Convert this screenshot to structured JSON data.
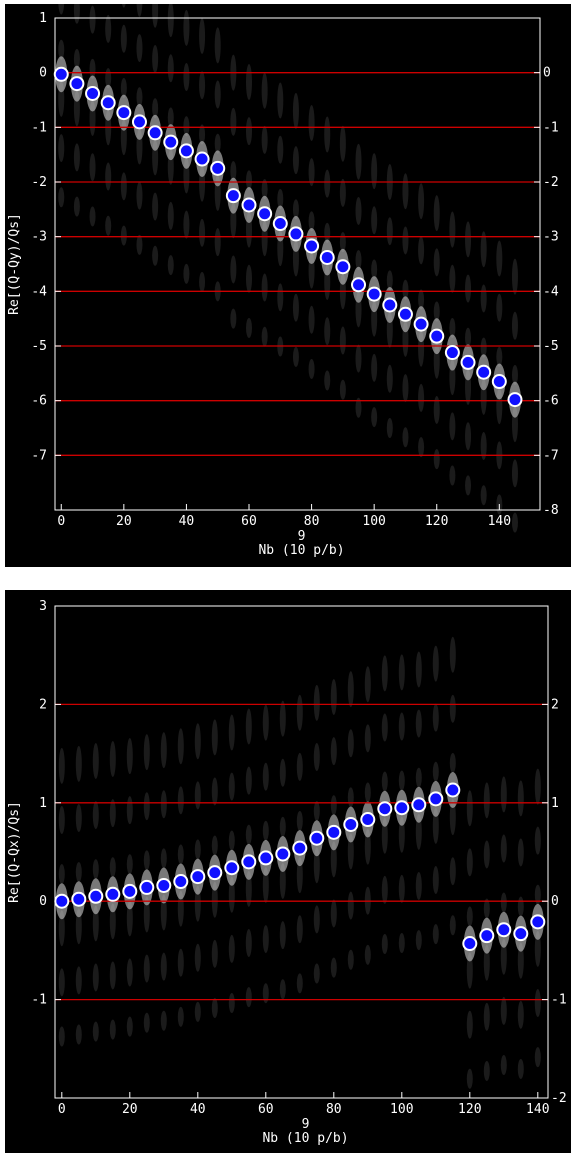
{
  "colors": {
    "background": "#000000",
    "axis": "#ffffff",
    "refline": "#cc0000",
    "marker": "#1010ff",
    "marker_edge": "#ffffff",
    "spectrum": "#dcdcdc"
  },
  "chart_data": [
    {
      "type": "scatter",
      "xlabel": "Nb (10 p/b)",
      "xlabel_exponent": "9",
      "ylabel": "Re[(Q-Qy)/Qs]",
      "xlim": [
        -2,
        153
      ],
      "ylim": [
        -8,
        1
      ],
      "xticks": [
        "0",
        "20",
        "40",
        "60",
        "80",
        "100",
        "120",
        "140"
      ],
      "xtick_values": [
        0,
        20,
        40,
        60,
        80,
        100,
        120,
        140
      ],
      "yticks_left": [
        "1",
        "0",
        "-1",
        "-2",
        "-3",
        "-4",
        "-5",
        "-6",
        "-7"
      ],
      "ytick_left_values": [
        1,
        0,
        -1,
        -2,
        -3,
        -4,
        -5,
        -6,
        -7
      ],
      "yticks_right": [
        "0",
        "-1",
        "-2",
        "-3",
        "-4",
        "-5",
        "-6",
        "-7",
        "-8"
      ],
      "ytick_right_values": [
        0,
        -1,
        -2,
        -3,
        -4,
        -5,
        -6,
        -7,
        -8
      ],
      "reference_lines": [
        0,
        -1,
        -2,
        -3,
        -4,
        -5,
        -6,
        -7
      ],
      "series": [
        {
          "x": [
            0,
            5,
            10,
            15,
            20,
            25,
            30,
            35,
            40,
            45,
            50,
            55,
            60,
            65,
            70,
            75,
            80,
            85,
            90,
            95,
            100,
            105,
            110,
            115,
            120,
            125,
            130,
            135,
            140,
            145
          ],
          "y": [
            -0.03,
            -0.2,
            -0.38,
            -0.55,
            -0.73,
            -0.9,
            -1.1,
            -1.27,
            -1.43,
            -1.58,
            -1.75,
            -2.25,
            -2.42,
            -2.58,
            -2.76,
            -2.95,
            -3.17,
            -3.38,
            -3.55,
            -3.88,
            -4.05,
            -4.25,
            -4.42,
            -4.6,
            -4.82,
            -5.12,
            -5.3,
            -5.48,
            -5.65,
            -5.98
          ]
        }
      ]
    },
    {
      "type": "scatter",
      "xlabel": "Nb (10 p/b)",
      "xlabel_exponent": "9",
      "ylabel": "Re[(Q-Qx)/Qs]",
      "xlim": [
        -2,
        143
      ],
      "ylim": [
        -2,
        3
      ],
      "xticks": [
        "0",
        "20",
        "40",
        "60",
        "80",
        "100",
        "120",
        "140"
      ],
      "xtick_values": [
        0,
        20,
        40,
        60,
        80,
        100,
        120,
        140
      ],
      "yticks_left": [
        "3",
        "2",
        "1",
        "0",
        "-1"
      ],
      "ytick_left_values": [
        3,
        2,
        1,
        0,
        -1
      ],
      "yticks_right": [
        "2",
        "1",
        "0",
        "-1",
        "-2"
      ],
      "ytick_right_values": [
        2,
        1,
        0,
        -1,
        -2
      ],
      "reference_lines": [
        2,
        1,
        0,
        -1
      ],
      "series": [
        {
          "x": [
            0,
            5,
            10,
            15,
            20,
            25,
            30,
            35,
            40,
            45,
            50,
            55,
            60,
            65,
            70,
            75,
            80,
            85,
            90,
            95,
            100,
            105,
            110,
            115,
            120,
            125,
            130,
            135,
            140
          ],
          "y": [
            0.0,
            0.02,
            0.05,
            0.07,
            0.1,
            0.14,
            0.16,
            0.2,
            0.25,
            0.29,
            0.34,
            0.4,
            0.44,
            0.48,
            0.54,
            0.64,
            0.7,
            0.78,
            0.83,
            0.94,
            0.95,
            0.98,
            1.04,
            1.13,
            -0.43,
            -0.35,
            -0.29,
            -0.33,
            -0.21
          ]
        }
      ]
    }
  ]
}
